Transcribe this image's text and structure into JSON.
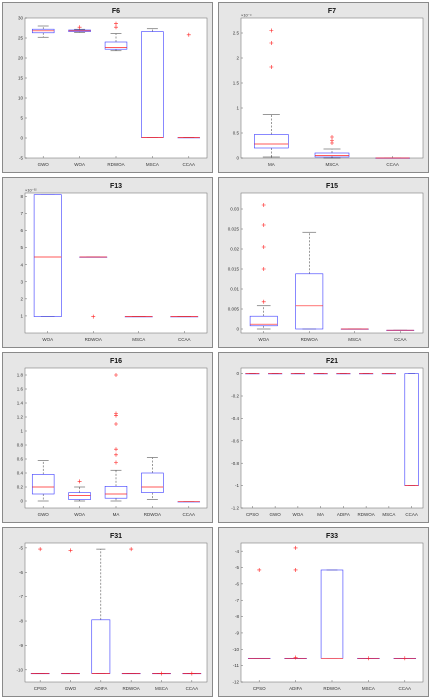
{
  "chart_data": [
    {
      "type": "box",
      "title": "F6",
      "categories": [
        "GWO",
        "WOA",
        "RDWOA",
        "MSCA",
        "CCAA"
      ],
      "ylim": [
        -5,
        30
      ],
      "yticks": [
        -5,
        0,
        5,
        10,
        15,
        20,
        25,
        30
      ],
      "ytick_labels": [
        "-5",
        "0",
        "5",
        "10",
        "15",
        "20",
        "25",
        "30"
      ],
      "exponent": "",
      "boxes": [
        {
          "min": 25.2,
          "q1": 26.3,
          "median": 26.8,
          "q3": 27.2,
          "max": 28.0,
          "outliers": []
        },
        {
          "min": 26.4,
          "q1": 26.6,
          "median": 26.8,
          "q3": 27.0,
          "max": 27.2,
          "outliers": [
            27.7
          ]
        },
        {
          "min": 21.8,
          "q1": 22.2,
          "median": 22.6,
          "q3": 24.0,
          "max": 26.1,
          "outliers": [
            28.6,
            27.7
          ]
        },
        {
          "min": 0.1,
          "q1": 0.1,
          "median": 0.1,
          "q3": 26.6,
          "max": 27.3,
          "outliers": []
        },
        {
          "min": 0.1,
          "q1": 0.1,
          "median": 0.1,
          "q3": 0.1,
          "max": 0.1,
          "outliers": [
            25.8
          ]
        }
      ]
    },
    {
      "type": "box",
      "title": "F7",
      "categories": [
        "MA",
        "MSCA",
        "CCAA"
      ],
      "ylim": [
        0,
        2.8
      ],
      "yticks": [
        0,
        0.5,
        1,
        1.5,
        2,
        2.5
      ],
      "ytick_labels": [
        "0",
        "0.5",
        "1",
        "1.5",
        "2",
        "2.5"
      ],
      "exponent": "×10⁻⁴",
      "boxes": [
        {
          "min": 0.02,
          "q1": 0.2,
          "median": 0.28,
          "q3": 0.47,
          "max": 0.87,
          "outliers": [
            2.55,
            2.3,
            1.82
          ]
        },
        {
          "min": 0.0,
          "q1": 0.02,
          "median": 0.05,
          "q3": 0.1,
          "max": 0.18,
          "outliers": [
            0.42,
            0.35,
            0.3
          ]
        },
        {
          "min": 0.0,
          "q1": 0.0,
          "median": 0.0,
          "q3": 0.0,
          "max": 0.0,
          "outliers": []
        }
      ]
    },
    {
      "type": "box",
      "title": "F13",
      "categories": [
        "WOA",
        "RDWOA",
        "MSCA",
        "CCAA"
      ],
      "ylim": [
        0,
        8.2
      ],
      "yticks": [
        1,
        2,
        3,
        4,
        5,
        6,
        7,
        8
      ],
      "ytick_labels": [
        "1",
        "2",
        "3",
        "4",
        "5",
        "6",
        "7",
        "8"
      ],
      "exponent": "×10⁻³²",
      "boxes": [
        {
          "min": 0.96,
          "q1": 0.96,
          "median": 4.45,
          "q3": 8.1,
          "max": 8.1,
          "outliers": []
        },
        {
          "min": 4.45,
          "q1": 4.45,
          "median": 4.45,
          "q3": 4.45,
          "max": 4.45,
          "outliers": [
            0.96
          ]
        },
        {
          "min": 0.96,
          "q1": 0.96,
          "median": 0.96,
          "q3": 0.96,
          "max": 0.96,
          "outliers": []
        },
        {
          "min": 0.96,
          "q1": 0.96,
          "median": 0.96,
          "q3": 0.96,
          "max": 0.96,
          "outliers": []
        }
      ]
    },
    {
      "type": "box",
      "title": "F15",
      "categories": [
        "WOA",
        "RDWOA",
        "MSCA",
        "CCAA"
      ],
      "ylim": [
        -0.001,
        0.034
      ],
      "yticks": [
        0,
        0.005,
        0.01,
        0.015,
        0.02,
        0.025,
        0.03
      ],
      "ytick_labels": [
        "0",
        "0.005",
        "0.01",
        "0.015",
        "0.02",
        "0.025",
        "0.03"
      ],
      "exponent": "",
      "boxes": [
        {
          "min": 0.0,
          "q1": 0.0008,
          "median": 0.0012,
          "q3": 0.0032,
          "max": 0.0058,
          "outliers": [
            0.031,
            0.026,
            0.0205,
            0.015,
            0.0068
          ]
        },
        {
          "min": 0.0,
          "q1": 0.0,
          "median": 0.0058,
          "q3": 0.0138,
          "max": 0.0242,
          "outliers": []
        },
        {
          "min": 0.0,
          "q1": 0.0,
          "median": 0.0,
          "q3": 0.0,
          "max": 0.0,
          "outliers": []
        },
        {
          "min": -0.0003,
          "q1": -0.0003,
          "median": -0.0003,
          "q3": -0.0003,
          "max": -0.0003,
          "outliers": []
        }
      ]
    },
    {
      "type": "box",
      "title": "F16",
      "categories": [
        "GWO",
        "WOA",
        "MA",
        "RDWOA",
        "CCAA"
      ],
      "ylim": [
        -0.1,
        1.9
      ],
      "yticks": [
        0,
        0.2,
        0.4,
        0.6,
        0.8,
        1,
        1.2,
        1.4,
        1.6,
        1.8
      ],
      "ytick_labels": [
        "0",
        "0.2",
        "0.4",
        "0.6",
        "0.8",
        "1",
        "1.2",
        "1.4",
        "1.6",
        "1.8"
      ],
      "exponent": "",
      "boxes": [
        {
          "min": 0.0,
          "q1": 0.1,
          "median": 0.2,
          "q3": 0.38,
          "max": 0.58,
          "outliers": []
        },
        {
          "min": 0.0,
          "q1": 0.02,
          "median": 0.08,
          "q3": 0.12,
          "max": 0.2,
          "outliers": [
            0.28
          ]
        },
        {
          "min": 0.0,
          "q1": 0.04,
          "median": 0.1,
          "q3": 0.21,
          "max": 0.44,
          "outliers": [
            1.8,
            1.25,
            1.22,
            1.1,
            0.74,
            0.66,
            0.55
          ]
        },
        {
          "min": 0.02,
          "q1": 0.12,
          "median": 0.2,
          "q3": 0.4,
          "max": 0.62,
          "outliers": []
        },
        {
          "min": -0.01,
          "q1": -0.01,
          "median": -0.01,
          "q3": -0.01,
          "max": -0.01,
          "outliers": []
        }
      ]
    },
    {
      "type": "box",
      "title": "F21",
      "categories": [
        "CPSO",
        "GWO",
        "WOA",
        "MA",
        "ADIFA",
        "RDWOA",
        "MSCA",
        "CCAA"
      ],
      "ylim": [
        -1.2,
        0.05
      ],
      "yticks": [
        0,
        -0.2,
        -0.4,
        -0.6,
        -0.8,
        -1,
        -1.2
      ],
      "ytick_labels": [
        "0",
        "-0.2",
        "-0.4",
        "-0.6",
        "-0.8",
        "-1",
        "-1.2"
      ],
      "exponent": "",
      "boxes": [
        {
          "min": 0.0,
          "q1": 0.0,
          "median": 0.0,
          "q3": 0.0,
          "max": 0.0,
          "outliers": []
        },
        {
          "min": 0.0,
          "q1": 0.0,
          "median": 0.0,
          "q3": 0.0,
          "max": 0.0,
          "outliers": []
        },
        {
          "min": 0.0,
          "q1": 0.0,
          "median": 0.0,
          "q3": 0.0,
          "max": 0.0,
          "outliers": []
        },
        {
          "min": 0.0,
          "q1": 0.0,
          "median": 0.0,
          "q3": 0.0,
          "max": 0.0,
          "outliers": []
        },
        {
          "min": 0.0,
          "q1": 0.0,
          "median": 0.0,
          "q3": 0.0,
          "max": 0.0,
          "outliers": []
        },
        {
          "min": 0.0,
          "q1": 0.0,
          "median": 0.0,
          "q3": 0.0,
          "max": 0.0,
          "outliers": []
        },
        {
          "min": 0.0,
          "q1": 0.0,
          "median": 0.0,
          "q3": 0.0,
          "max": 0.0,
          "outliers": []
        },
        {
          "min": -1.0,
          "q1": -1.0,
          "median": -1.0,
          "q3": 0.0,
          "max": 0.0,
          "outliers": []
        }
      ]
    },
    {
      "type": "box",
      "title": "F31",
      "categories": [
        "CPSO",
        "GWO",
        "ADIFA",
        "RDWOA",
        "MSCA",
        "CCAA"
      ],
      "ylim": [
        -10.5,
        -4.8
      ],
      "yticks": [
        -5,
        -6,
        -7,
        -8,
        -9,
        -10
      ],
      "ytick_labels": [
        "-5",
        "-6",
        "-7",
        "-8",
        "-9",
        "-10"
      ],
      "exponent": "",
      "boxes": [
        {
          "min": -10.15,
          "q1": -10.15,
          "median": -10.15,
          "q3": -10.15,
          "max": -10.15,
          "outliers": [
            -5.05
          ]
        },
        {
          "min": -10.15,
          "q1": -10.15,
          "median": -10.15,
          "q3": -10.15,
          "max": -10.15,
          "outliers": [
            -5.1
          ]
        },
        {
          "min": -10.15,
          "q1": -10.15,
          "median": -10.15,
          "q3": -7.95,
          "max": -5.05,
          "outliers": []
        },
        {
          "min": -10.15,
          "q1": -10.15,
          "median": -10.15,
          "q3": -10.15,
          "max": -10.15,
          "outliers": [
            -5.05
          ]
        },
        {
          "min": -10.15,
          "q1": -10.15,
          "median": -10.15,
          "q3": -10.15,
          "max": -10.15,
          "outliers": [
            -10.15
          ]
        },
        {
          "min": -10.15,
          "q1": -10.15,
          "median": -10.15,
          "q3": -10.15,
          "max": -10.15,
          "outliers": [
            -10.15
          ]
        }
      ]
    },
    {
      "type": "box",
      "title": "F33",
      "categories": [
        "CPSO",
        "ADIFA",
        "RDWOA",
        "MSCA",
        "CCAA"
      ],
      "ylim": [
        -12,
        -3.5
      ],
      "yticks": [
        -4,
        -5,
        -6,
        -7,
        -8,
        -9,
        -10,
        -11,
        -12
      ],
      "ytick_labels": [
        "-4",
        "-5",
        "-6",
        "-7",
        "-8",
        "-9",
        "-10",
        "-11",
        "-12"
      ],
      "exponent": "",
      "boxes": [
        {
          "min": -10.55,
          "q1": -10.55,
          "median": -10.55,
          "q3": -10.55,
          "max": -10.55,
          "outliers": [
            -5.15
          ]
        },
        {
          "min": -10.55,
          "q1": -10.55,
          "median": -10.55,
          "q3": -10.55,
          "max": -10.55,
          "outliers": [
            -3.8,
            -5.15,
            -10.5
          ]
        },
        {
          "min": -10.55,
          "q1": -10.55,
          "median": -10.55,
          "q3": -5.15,
          "max": -5.15,
          "outliers": []
        },
        {
          "min": -10.55,
          "q1": -10.55,
          "median": -10.55,
          "q3": -10.55,
          "max": -10.55,
          "outliers": [
            -10.55
          ]
        },
        {
          "min": -10.55,
          "q1": -10.55,
          "median": -10.55,
          "q3": -10.55,
          "max": -10.55,
          "outliers": [
            -10.55
          ]
        }
      ]
    }
  ],
  "colors": {
    "box": "#3a3aff",
    "median": "#ff2020",
    "outlier": "#ff2020",
    "whisker": "#333333",
    "panel_bg": "#e6e6e6",
    "axes_bg": "#ffffff"
  }
}
